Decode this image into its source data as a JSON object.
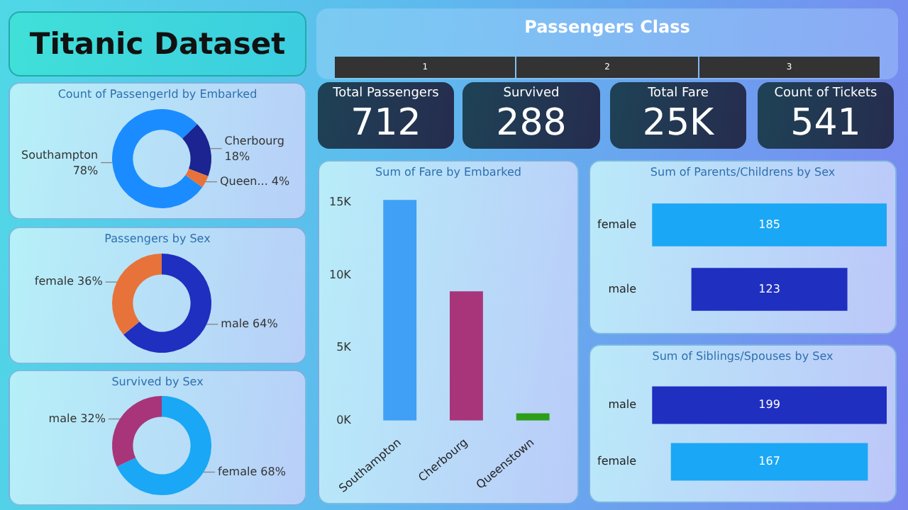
{
  "chart_data": [
    {
      "type": "other",
      "title": "Titanic Dataset"
    },
    {
      "type": "other",
      "title": "Passengers Class",
      "annotations": [
        "1",
        "2",
        "3"
      ]
    },
    {
      "type": "other",
      "title": "Total Passengers",
      "annotations": [
        "712"
      ]
    },
    {
      "type": "other",
      "title": "Survived",
      "annotations": [
        "288"
      ]
    },
    {
      "type": "other",
      "title": "Total Fare",
      "annotations": [
        "25K"
      ]
    },
    {
      "type": "other",
      "title": "Count of Tickets",
      "annotations": [
        "541"
      ]
    },
    {
      "type": "donut",
      "title": "Count of PassengerId by Embarked",
      "categories": [
        "Southampton",
        "Cherbourg",
        "Queen..."
      ],
      "values": [
        78,
        18,
        4
      ],
      "value_labels": [
        "78%",
        "18%",
        "4%"
      ],
      "colors": [
        "#1a8cff",
        "#1b2490",
        "#e8733a"
      ]
    },
    {
      "type": "donut",
      "title": "Passengers by Sex",
      "categories": [
        "male",
        "female"
      ],
      "values": [
        64,
        36
      ],
      "value_labels": [
        "64%",
        "36%"
      ],
      "colors": [
        "#1f2fbf",
        "#e8733a"
      ]
    },
    {
      "type": "donut",
      "title": "Survived by Sex",
      "categories": [
        "female",
        "male"
      ],
      "values": [
        68,
        32
      ],
      "value_labels": [
        "68%",
        "32%"
      ],
      "colors": [
        "#1aa7f5",
        "#a8357a"
      ]
    },
    {
      "type": "bar",
      "title": "Sum of Fare by Embarked",
      "categories": [
        "Southampton",
        "Cherbourg",
        "Queenstown"
      ],
      "values": [
        15200,
        8900,
        500
      ],
      "colors": [
        "#3fa0f5",
        "#a8357a",
        "#2e9e1a"
      ],
      "ylim": [
        0,
        15500
      ],
      "yticks": [
        {
          "value": 0,
          "label": "0K"
        },
        {
          "value": 5000,
          "label": "5K"
        },
        {
          "value": 10000,
          "label": "10K"
        },
        {
          "value": 15000,
          "label": "15K"
        }
      ],
      "grid": false
    },
    {
      "type": "other",
      "title": "Sum of Parents/Childrens by Sex",
      "categories": [
        "female",
        "male"
      ],
      "values": [
        185,
        123
      ],
      "data_labels": true
    },
    {
      "type": "other",
      "title": "Sum of Siblings/Spouses by Sex",
      "categories": [
        "male",
        "female"
      ],
      "values": [
        199,
        167
      ],
      "data_labels": true
    }
  ]
}
